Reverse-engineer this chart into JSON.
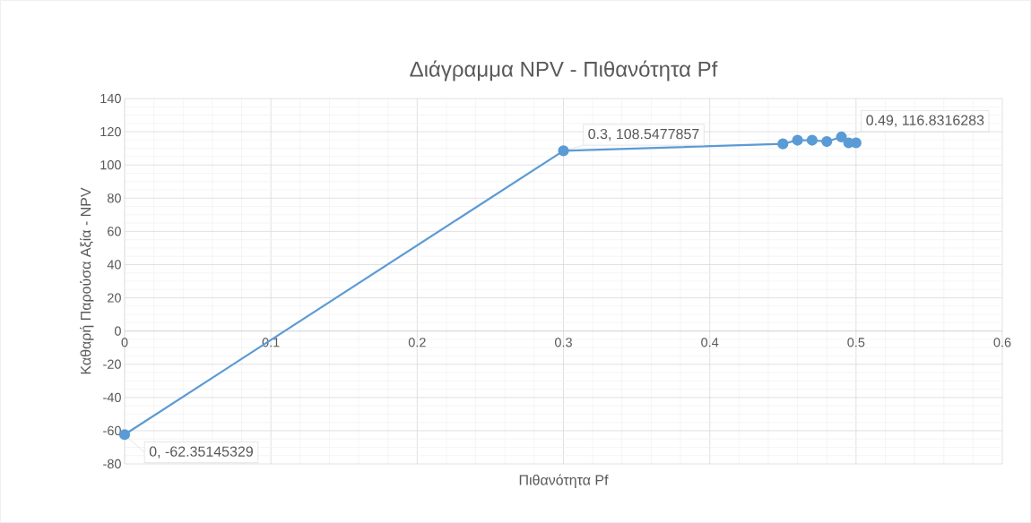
{
  "chart_data": {
    "type": "line",
    "title": "Διάγραμμα NPV - Πιθανότητα Pf",
    "xlabel": "Πιθανότητα Pf",
    "ylabel": "Καθαρή Παρούσα Αξία - NPV",
    "x": [
      0,
      0.3,
      0.45,
      0.46,
      0.47,
      0.48,
      0.49,
      0.495,
      0.5
    ],
    "series": [
      {
        "color": "#5b9bd5",
        "values": [
          -62.35145329,
          108.5477857,
          112.7,
          114.9,
          114.9,
          114.1,
          116.8316283,
          113.3,
          113.3
        ]
      }
    ],
    "xlim": [
      0,
      0.6
    ],
    "xticks": [
      0,
      0.1,
      0.2,
      0.3,
      0.4,
      0.5,
      0.6
    ],
    "ylim": [
      -80,
      140
    ],
    "yticks": [
      -80,
      -60,
      -40,
      -20,
      0,
      20,
      40,
      60,
      80,
      100,
      120,
      140
    ],
    "grid": true,
    "marker": "circle",
    "line_style": "solid",
    "annotations": [
      {
        "text": "0, -62.35145329",
        "x": 0,
        "y": -62.35145329
      },
      {
        "text": "0.3, 108.5477857",
        "x": 0.3,
        "y": 108.5477857
      },
      {
        "text": "0.49, 116.8316283",
        "x": 0.49,
        "y": 116.8316283
      }
    ]
  }
}
